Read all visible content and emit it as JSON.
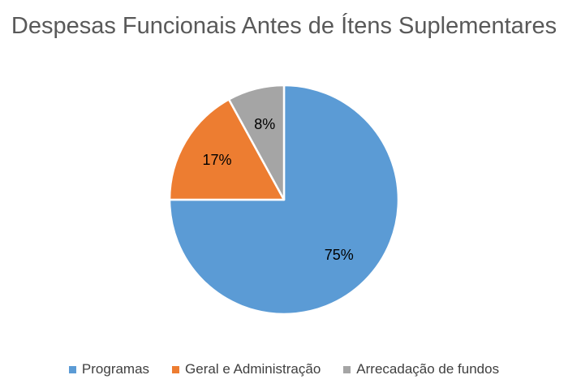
{
  "chart_data": {
    "type": "pie",
    "title": "Despesas Funcionais Antes de Ítens Suplementares",
    "slices": [
      {
        "name": "Programas",
        "value": 75,
        "label": "75%",
        "color": "#5B9BD5"
      },
      {
        "name": "Geral e Administração",
        "value": 17,
        "label": "17%",
        "color": "#ED7D31"
      },
      {
        "name": "Arrecadação de fundos",
        "value": 8,
        "label": "8%",
        "color": "#A5A5A5"
      }
    ],
    "start_angle": "12 o'clock",
    "direction": "clockwise",
    "legend_position": "bottom"
  }
}
